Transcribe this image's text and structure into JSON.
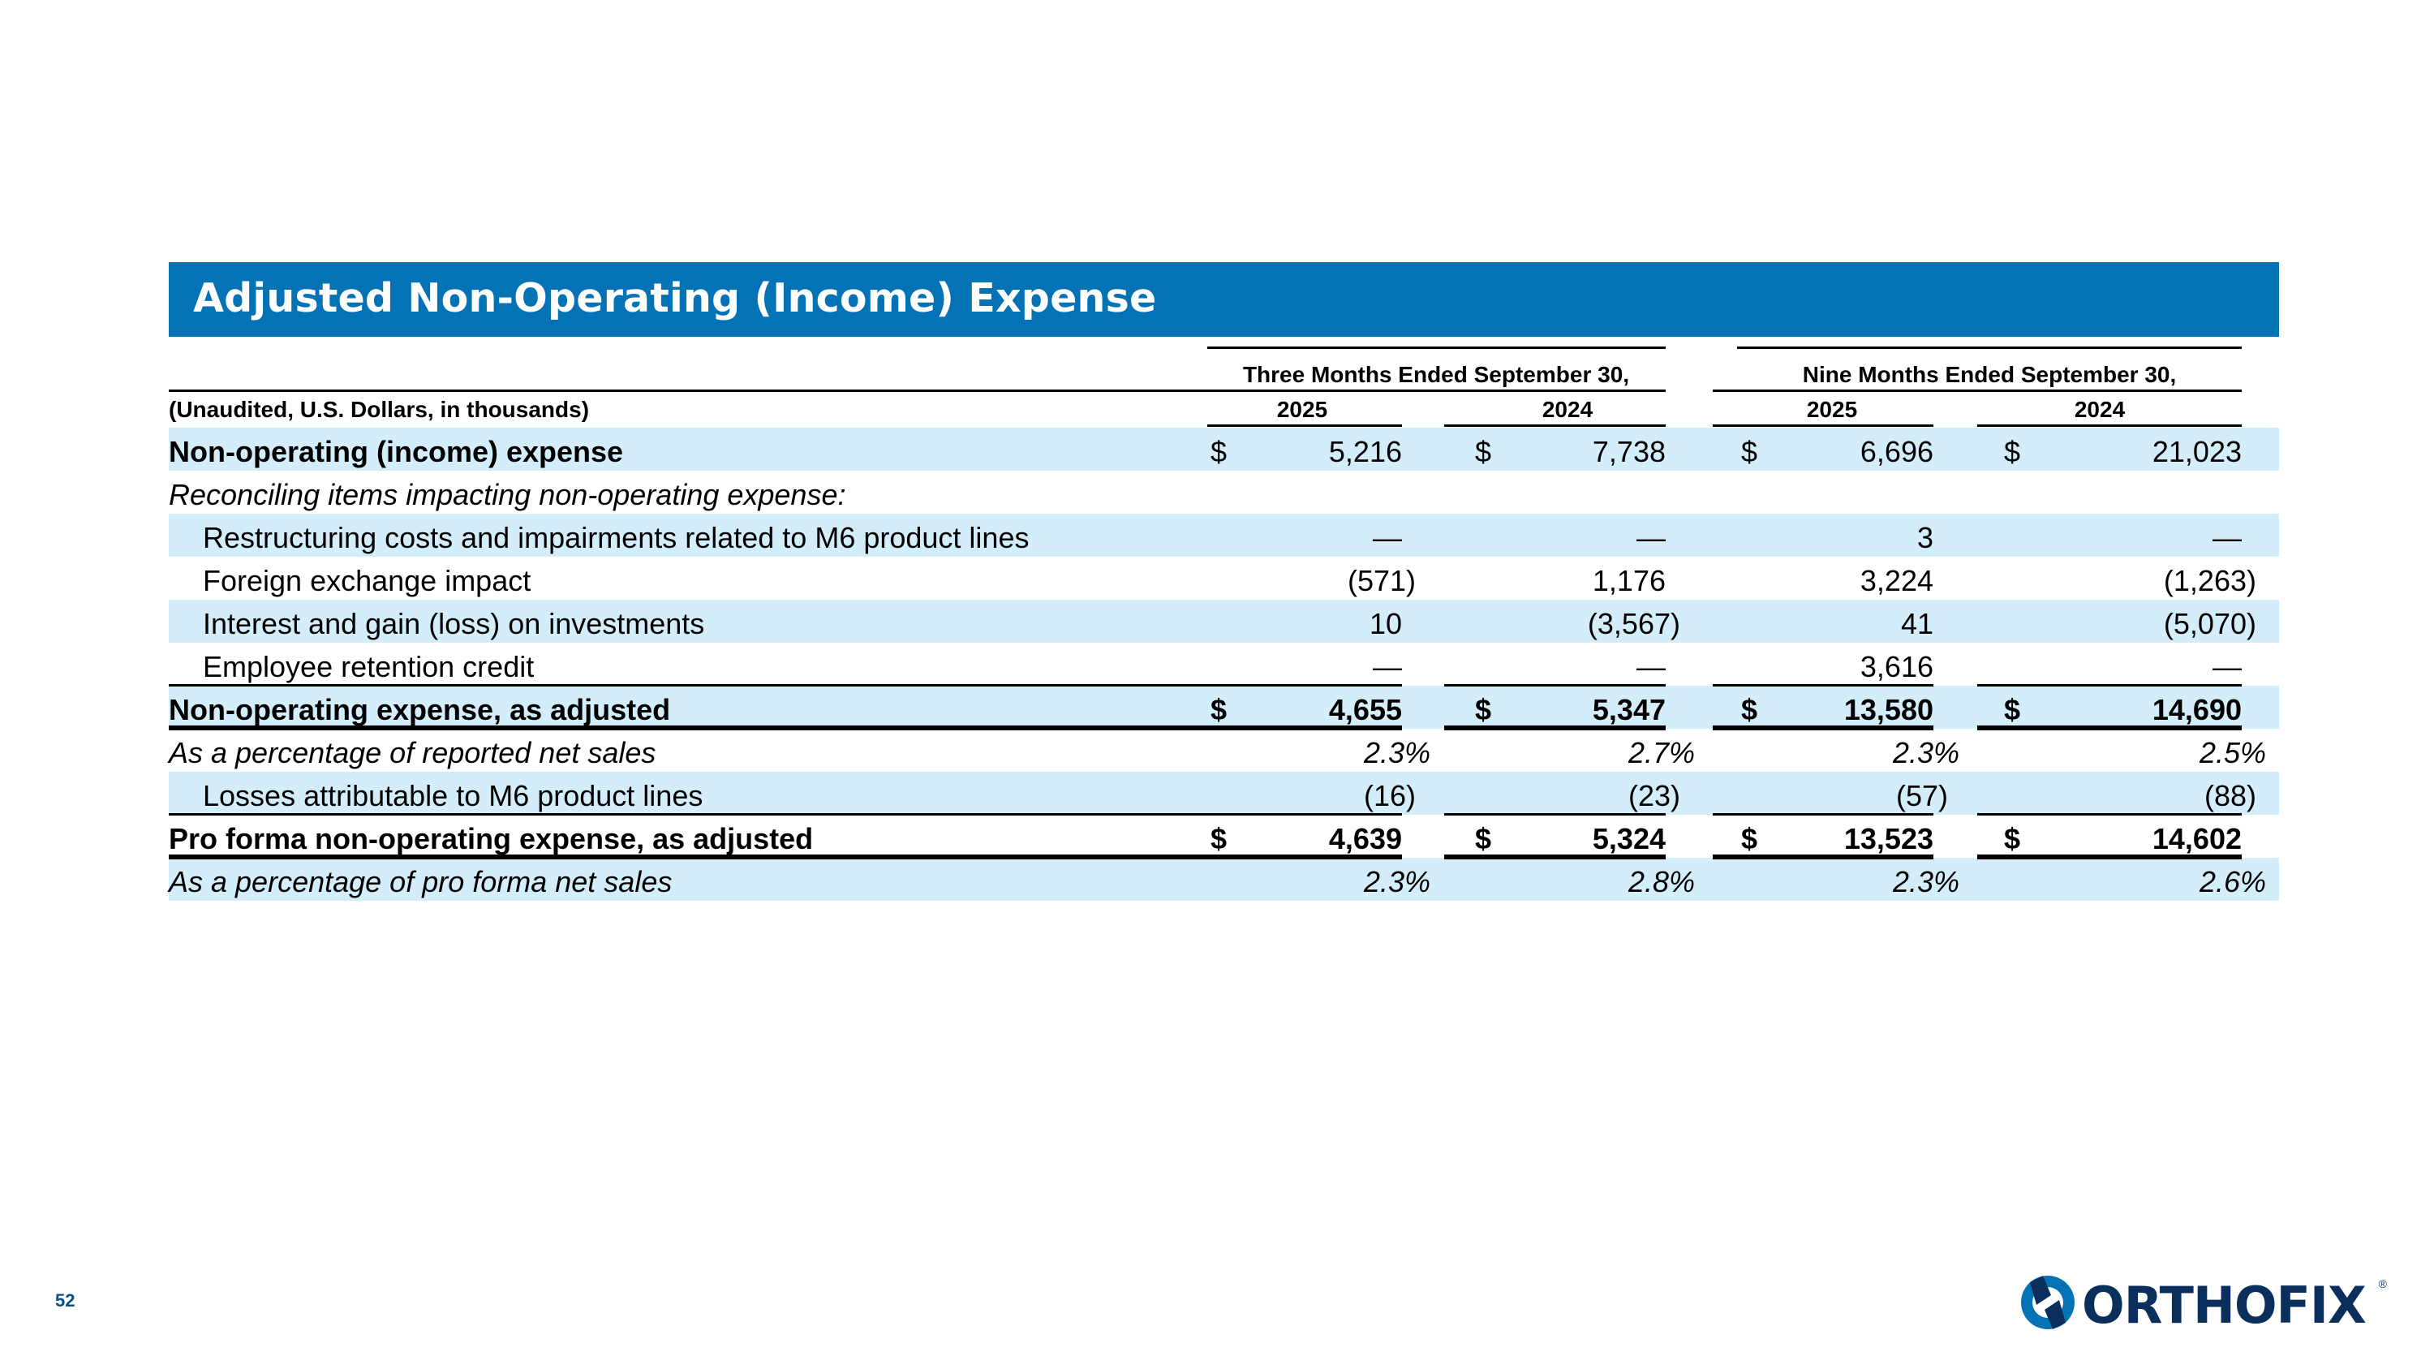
{
  "title": "Adjusted Non-Operating (Income) Expense",
  "header": {
    "unit_note": "(Unaudited, U.S. Dollars, in thousands)",
    "group1": "Three Months Ended September 30,",
    "group2": "Nine Months Ended September 30,",
    "years": [
      "2025",
      "2024",
      "2025",
      "2024"
    ]
  },
  "rows": [
    {
      "label": "Non-operating (income) expense",
      "style": "bold",
      "shade": true,
      "dollar": true,
      "values": [
        "5,216",
        "7,738",
        "6,696",
        "21,023"
      ]
    },
    {
      "label": "Reconciling items impacting non-operating expense:",
      "style": "italic",
      "shade": false,
      "dollar": false,
      "values": [
        "",
        "",
        "",
        ""
      ]
    },
    {
      "label": "Restructuring costs and impairments related to M6 product lines",
      "style": "indent",
      "shade": true,
      "dollar": false,
      "values": [
        "—",
        "—",
        "3",
        "—"
      ]
    },
    {
      "label": "Foreign exchange impact",
      "style": "indent",
      "shade": false,
      "dollar": false,
      "values": [
        "(571)",
        "1,176",
        "3,224",
        "(1,263)"
      ]
    },
    {
      "label": "Interest and gain (loss) on investments",
      "style": "indent",
      "shade": true,
      "dollar": false,
      "values": [
        "10",
        "(3,567)",
        "41",
        "(5,070)"
      ]
    },
    {
      "label": "Employee retention credit",
      "style": "indent",
      "shade": false,
      "dollar": false,
      "values": [
        "—",
        "—",
        "3,616",
        "—"
      ]
    },
    {
      "label": "Non-operating expense, as adjusted",
      "style": "bold",
      "shade": true,
      "dollar": true,
      "values": [
        "4,655",
        "5,347",
        "13,580",
        "14,690"
      ]
    },
    {
      "label": "As a percentage of reported net sales",
      "style": "italic",
      "shade": false,
      "dollar": false,
      "values": [
        "2.3%",
        "2.7%",
        "2.3%",
        "2.5%"
      ]
    },
    {
      "label": "Losses attributable to M6 product lines",
      "style": "indent",
      "shade": true,
      "dollar": false,
      "values": [
        "(16)",
        "(23)",
        "(57)",
        "(88)"
      ]
    },
    {
      "label": "Pro forma non-operating expense, as adjusted",
      "style": "bold",
      "shade": false,
      "dollar": true,
      "values": [
        "4,639",
        "5,324",
        "13,523",
        "14,602"
      ]
    },
    {
      "label": "As a percentage of pro forma net sales",
      "style": "italic",
      "shade": true,
      "dollar": false,
      "values": [
        "2.3%",
        "2.8%",
        "2.3%",
        "2.6%"
      ]
    }
  ],
  "currency_symbol": "$",
  "page_number": "52",
  "logo": {
    "name": "ORTHOFIX",
    "mark": "®",
    "color": "#0a2f5c",
    "icon": "orthofix-logo-icon"
  },
  "colors": {
    "banner": "#0473b5",
    "row_shade": "#d3eefa"
  }
}
